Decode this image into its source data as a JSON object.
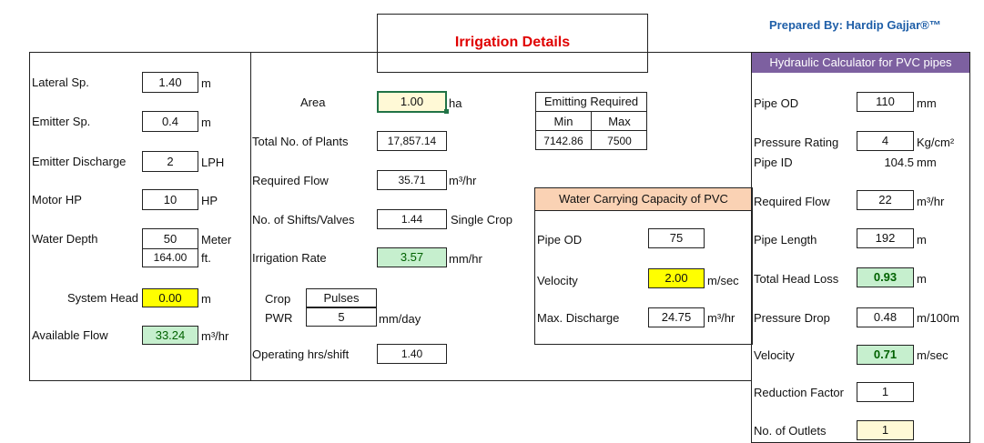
{
  "header": {
    "title": "Irrigation Details",
    "credit": "Prepared By: Hardip Gajjar®™"
  },
  "left": {
    "lateral_label": "Lateral Sp.",
    "lateral_value": "1.40",
    "lateral_unit": "m",
    "emitter_sp_label": "Emitter Sp.",
    "emitter_sp_value": "0.4",
    "emitter_sp_unit": "m",
    "emitter_discharge_label": "Emitter Discharge",
    "emitter_discharge_value": "2",
    "emitter_discharge_unit": "LPH",
    "motor_hp_label": "Motor HP",
    "motor_hp_value": "10",
    "motor_hp_unit": "HP",
    "water_depth_label": "Water Depth",
    "water_depth_value": "50",
    "water_depth_unit": "Meter",
    "water_depth_ft_value": "164.00",
    "water_depth_ft_unit": "ft.",
    "system_head_label": "System Head",
    "system_head_value": "0.00",
    "system_head_unit": "m",
    "available_flow_label": "Available Flow",
    "available_flow_value": "33.24",
    "available_flow_unit": "m³/hr"
  },
  "middle": {
    "area_label": "Area",
    "area_value": "1.00",
    "area_unit": "ha",
    "plants_label": "Total No. of Plants",
    "plants_value": "17,857.14",
    "req_flow_label": "Required Flow",
    "req_flow_value": "35.71",
    "req_flow_unit": "m³/hr",
    "shifts_label": "No. of Shifts/Valves",
    "shifts_value": "1.44",
    "shifts_note": "Single Crop",
    "irr_rate_label": "Irrigation Rate",
    "irr_rate_value": "3.57",
    "irr_rate_unit": "mm/hr",
    "crop_label": "Crop",
    "crop_value": "Pulses",
    "pwr_label": "PWR",
    "pwr_value": "5",
    "pwr_unit": "mm/day",
    "op_hrs_label": "Operating hrs/shift",
    "op_hrs_value": "1.40"
  },
  "emitting": {
    "title": "Emitting Required",
    "min_label": "Min",
    "max_label": "Max",
    "min_value": "7142.86",
    "max_value": "7500"
  },
  "pvc_capacity": {
    "title": "Water Carrying Capacity of PVC",
    "pipe_od_label": "Pipe OD",
    "pipe_od_value": "75",
    "velocity_label": "Velocity",
    "velocity_value": "2.00",
    "velocity_unit": "m/sec",
    "max_discharge_label": "Max. Discharge",
    "max_discharge_value": "24.75",
    "max_discharge_unit": "m³/hr"
  },
  "hydraulic": {
    "title": "Hydraulic Calculator for PVC pipes",
    "pipe_od_label": "Pipe OD",
    "pipe_od_value": "110",
    "pipe_od_unit": "mm",
    "pressure_rating_label": "Pressure Rating",
    "pressure_rating_value": "4",
    "pressure_rating_unit": "Kg/cm²",
    "pipe_id_label": "Pipe ID",
    "pipe_id_value": "104.5",
    "pipe_id_unit": "mm",
    "req_flow_label": "Required Flow",
    "req_flow_value": "22",
    "req_flow_unit": "m³/hr",
    "pipe_length_label": "Pipe Length",
    "pipe_length_value": "192",
    "pipe_length_unit": "m",
    "head_loss_label": "Total Head Loss",
    "head_loss_value": "0.93",
    "head_loss_unit": "m",
    "pressure_drop_label": "Pressure Drop",
    "pressure_drop_value": "0.48",
    "pressure_drop_unit": "m/100m",
    "velocity_label": "Velocity",
    "velocity_value": "0.71",
    "velocity_unit": "m/sec",
    "reduction_label": "Reduction Factor",
    "reduction_value": "1",
    "outlets_label": "No. of Outlets",
    "outlets_value": "1"
  }
}
